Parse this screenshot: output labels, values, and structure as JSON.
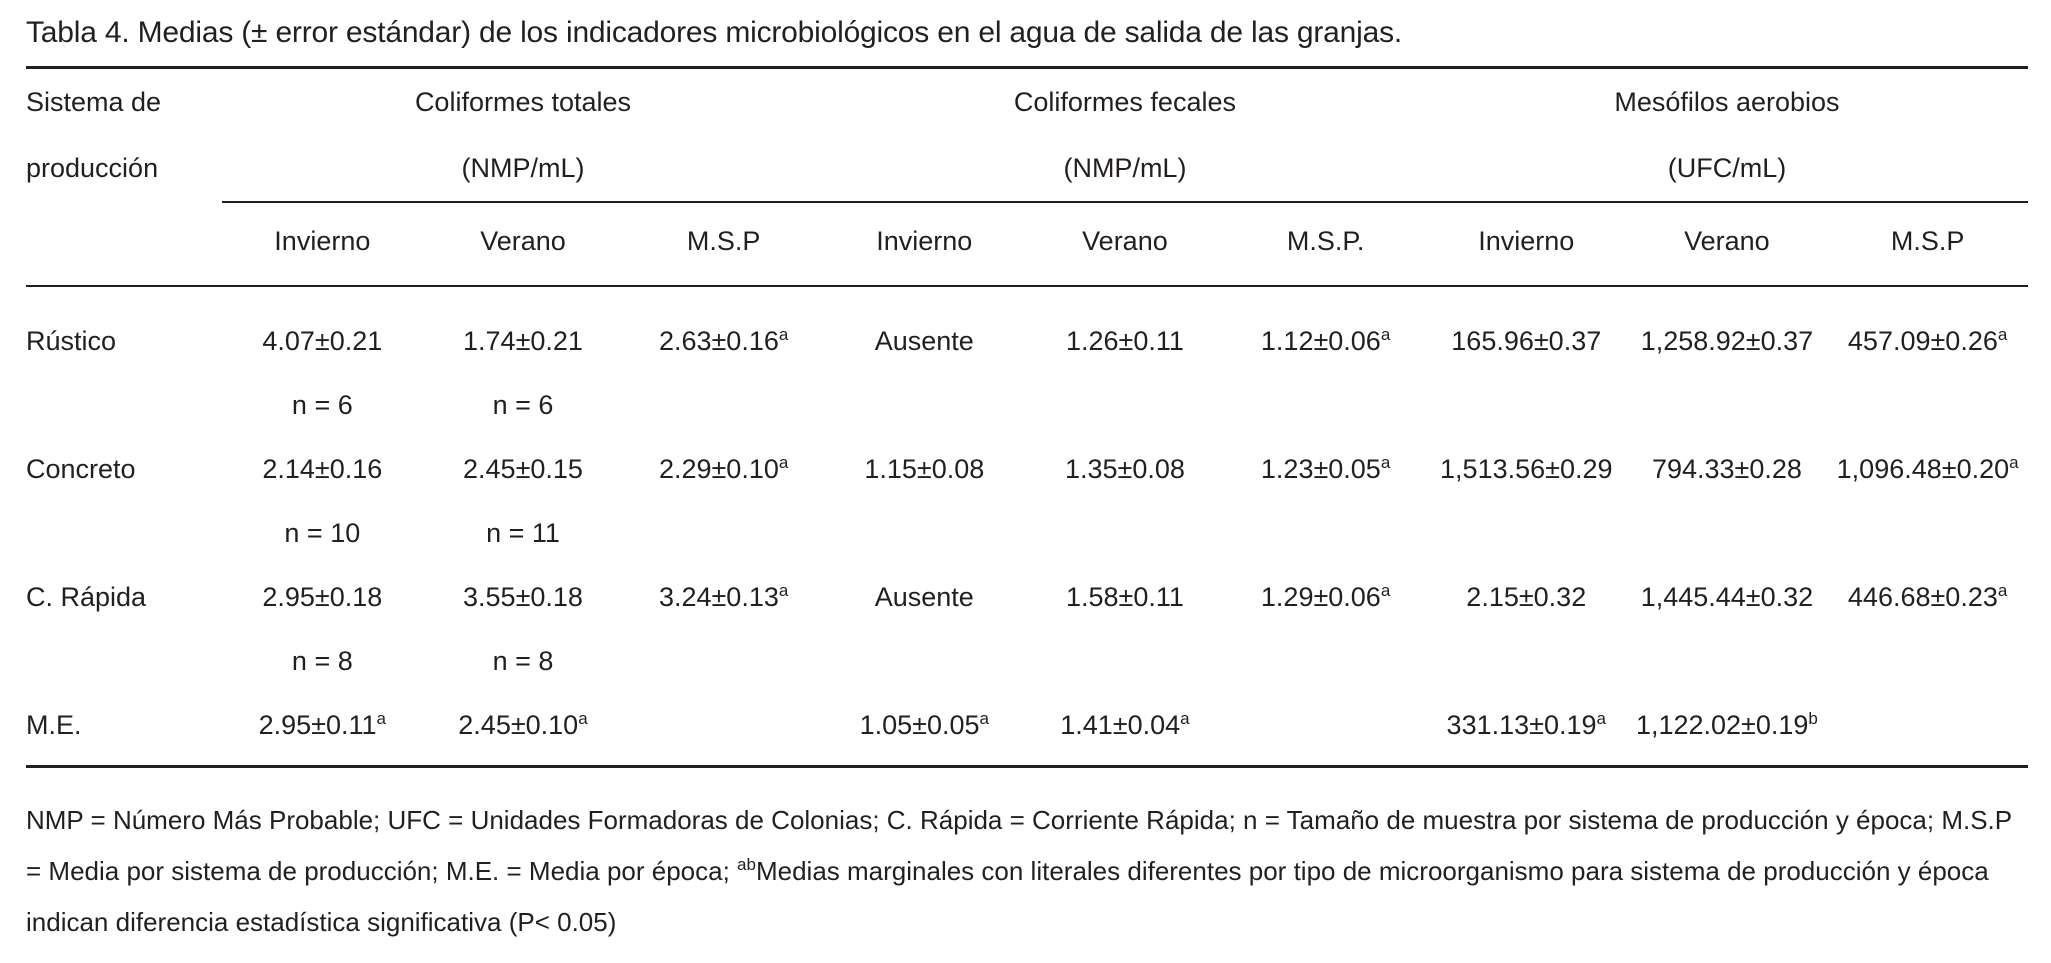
{
  "title": "Tabla 4. Medias (± error estándar) de los indicadores microbiológicos en el agua de salida de las granjas.",
  "table": {
    "row_header": [
      "Sistema de",
      "producción"
    ],
    "groups": [
      {
        "name": "Coliformes totales",
        "unit": "(NMP/mL)"
      },
      {
        "name": "Coliformes fecales",
        "unit": "(NMP/mL)"
      },
      {
        "name": "Mesófilos aerobios",
        "unit": "(UFC/mL)"
      }
    ],
    "subheaders": [
      "Invierno",
      "Verano",
      "M.S.P",
      "Invierno",
      "Verano",
      "M.S.P.",
      "Invierno",
      "Verano",
      "M.S.P"
    ],
    "rows": [
      {
        "label": "Rústico",
        "cells": [
          "4.07±0.21",
          "1.74±0.21",
          {
            "text": "2.63±0.16",
            "sup": "a"
          },
          "Ausente",
          "1.26±0.11",
          {
            "text": "1.12±0.06",
            "sup": "a"
          },
          "165.96±0.37",
          "1,258.92±0.37",
          {
            "text": "457.09±0.26",
            "sup": "a"
          }
        ],
        "n": [
          "n = 6",
          "n = 6"
        ]
      },
      {
        "label": "Concreto",
        "cells": [
          "2.14±0.16",
          "2.45±0.15",
          {
            "text": "2.29±0.10",
            "sup": "a"
          },
          "1.15±0.08",
          "1.35±0.08",
          {
            "text": "1.23±0.05",
            "sup": "a"
          },
          "1,513.56±0.29",
          "794.33±0.28",
          {
            "text": "1,096.48±0.20",
            "sup": "a"
          }
        ],
        "n": [
          "n = 10",
          "n = 11"
        ]
      },
      {
        "label": "C. Rápida",
        "cells": [
          "2.95±0.18",
          "3.55±0.18",
          {
            "text": "3.24±0.13",
            "sup": "a"
          },
          "Ausente",
          "1.58±0.11",
          {
            "text": "1.29±0.06",
            "sup": "a"
          },
          "2.15±0.32",
          "1,445.44±0.32",
          {
            "text": "446.68±0.23",
            "sup": "a"
          }
        ],
        "n": [
          "n = 8",
          "n = 8"
        ]
      },
      {
        "label": "M.E.",
        "cells": [
          {
            "text": "2.95±0.11",
            "sup": "a"
          },
          {
            "text": "2.45±0.10",
            "sup": "a"
          },
          null,
          {
            "text": "1.05±0.05",
            "sup": "a"
          },
          {
            "text": "1.41±0.04",
            "sup": "a"
          },
          null,
          {
            "text": "331.13±0.19",
            "sup": "a"
          },
          {
            "text": "1,122.02±0.19",
            "sup": "b"
          },
          null
        ]
      }
    ]
  },
  "footnote": [
    {
      "text": "NMP = Número Más Probable; UFC = Unidades Formadoras de Colonias; C. Rápida = Corriente Rápida; n = Tamaño de muestra por sistema de producción y época; M.S.P = Media por sistema de producción; M.E. = Media por época; "
    },
    {
      "sup": "ab"
    },
    {
      "text": "Medias marginales con literales diferentes por tipo de microorganismo para sistema de producción y época indican diferencia estadística significativa (P< 0.05)"
    }
  ]
}
